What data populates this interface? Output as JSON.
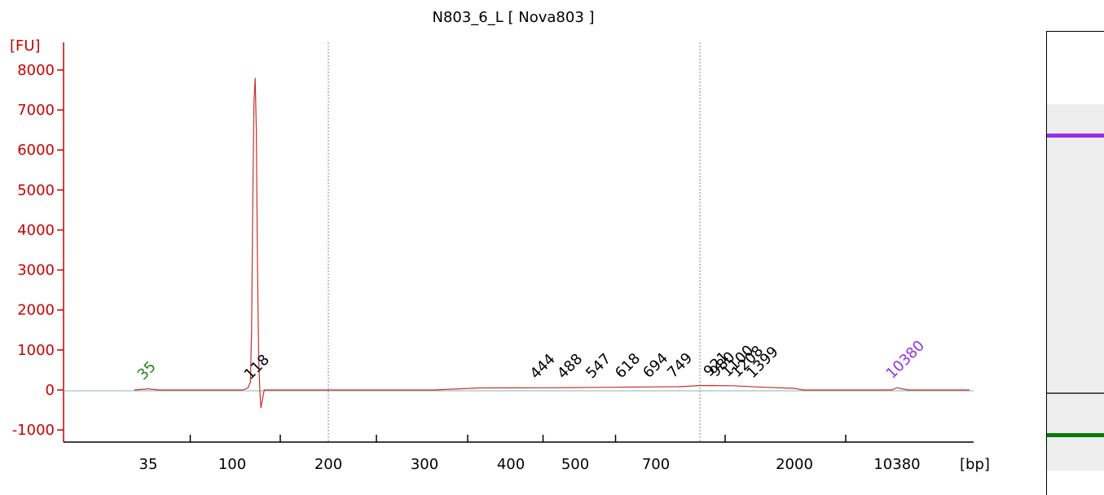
{
  "chart_data": {
    "type": "line",
    "title": "N803_6_L  [ Nova803 ]",
    "ylabel": "[FU]",
    "xlabel": "[bp]",
    "ylim": [
      -1200,
      8700
    ],
    "y_ticks": [
      -1000,
      0,
      1000,
      2000,
      3000,
      4000,
      5000,
      6000,
      7000,
      8000
    ],
    "x_tick_labels": [
      "35",
      "100",
      "200",
      "300",
      "400",
      "500",
      "700",
      "2000",
      "10380"
    ],
    "x_scale": "ladder (non-linear bp)",
    "grid": "none",
    "vertical_reference_lines_bp": [
      200,
      800
    ],
    "colors": {
      "axis": "#cc0000",
      "trace": "#c83030",
      "baseline": "#8ab4b4",
      "marker_lower": "#1a8a1a",
      "marker_upper": "#9a2ee6",
      "peak_label": "#000000"
    },
    "series": [
      {
        "points_bp_fu": [
          [
            30,
            0
          ],
          [
            34,
            20
          ],
          [
            35,
            30
          ],
          [
            36,
            20
          ],
          [
            40,
            0
          ],
          [
            108,
            0
          ],
          [
            112,
            50
          ],
          [
            114,
            200
          ],
          [
            115,
            1500
          ],
          [
            116,
            4800
          ],
          [
            117,
            7200
          ],
          [
            118,
            7800
          ],
          [
            119,
            6500
          ],
          [
            120,
            3200
          ],
          [
            121,
            800
          ],
          [
            122,
            0
          ],
          [
            123,
            -450
          ],
          [
            124,
            -300
          ],
          [
            126,
            0
          ],
          [
            310,
            0
          ],
          [
            360,
            50
          ],
          [
            444,
            55
          ],
          [
            488,
            60
          ],
          [
            547,
            65
          ],
          [
            618,
            72
          ],
          [
            694,
            78
          ],
          [
            749,
            82
          ],
          [
            800,
            110
          ],
          [
            921,
            112
          ],
          [
            980,
            108
          ],
          [
            1100,
            105
          ],
          [
            1208,
            95
          ],
          [
            1399,
            75
          ],
          [
            2000,
            40
          ],
          [
            2300,
            0
          ],
          [
            9500,
            0
          ],
          [
            10000,
            30
          ],
          [
            10380,
            60
          ],
          [
            10800,
            30
          ],
          [
            11500,
            0
          ],
          [
            20000,
            0
          ]
        ]
      }
    ],
    "peaks": [
      {
        "bp": 35,
        "label": "35",
        "kind": "lower-marker"
      },
      {
        "bp": 118,
        "label": "118",
        "kind": "peak"
      },
      {
        "bp": 444,
        "label": "444",
        "kind": "peak"
      },
      {
        "bp": 488,
        "label": "488",
        "kind": "peak"
      },
      {
        "bp": 547,
        "label": "547",
        "kind": "peak"
      },
      {
        "bp": 618,
        "label": "618",
        "kind": "peak"
      },
      {
        "bp": 694,
        "label": "694",
        "kind": "peak"
      },
      {
        "bp": 749,
        "label": "749",
        "kind": "peak"
      },
      {
        "bp": 921,
        "label": "921",
        "kind": "peak"
      },
      {
        "bp": 980,
        "label": "980",
        "kind": "peak"
      },
      {
        "bp": 1100,
        "label": "1100",
        "kind": "peak"
      },
      {
        "bp": 1208,
        "label": "1208",
        "kind": "peak"
      },
      {
        "bp": 1399,
        "label": "1399",
        "kind": "peak"
      },
      {
        "bp": 10380,
        "label": "10380",
        "kind": "upper-marker"
      }
    ]
  },
  "gel": {
    "lane_background": "#eeeeee",
    "bands": [
      {
        "bp": 10380,
        "color": "#9a2ee6",
        "kind": "upper-marker"
      },
      {
        "bp": 118,
        "color": "#555555",
        "kind": "sample-peak"
      },
      {
        "bp": 35,
        "color": "#0a7a0a",
        "kind": "lower-marker"
      }
    ]
  }
}
